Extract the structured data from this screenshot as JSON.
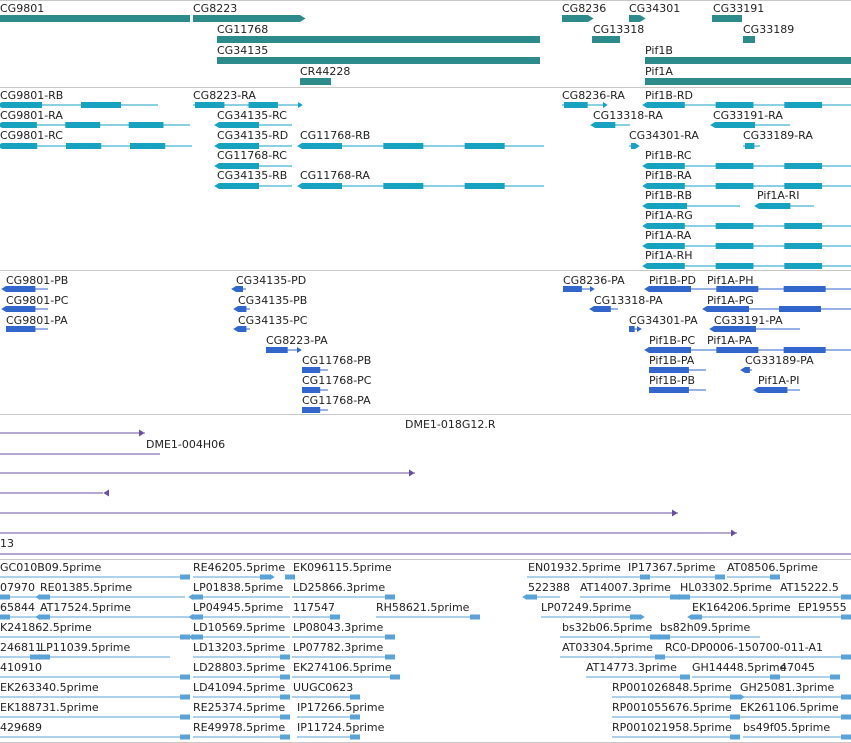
{
  "colors": {
    "gene": "#2e8b8b",
    "mrna": "#17a2c0",
    "protein": "#3366cc",
    "clone": "#6a4fa0",
    "est": "#5ba3d6",
    "separator": "#c8c8c8"
  },
  "tracks": [
    {
      "id": "genes",
      "color_key": "gene",
      "features": [
        {
          "label": "CG9801"
        },
        {
          "label": "CG8223"
        },
        {
          "label": "CG11768"
        },
        {
          "label": "CG34135"
        },
        {
          "label": "CR44228"
        },
        {
          "label": "CG8236"
        },
        {
          "label": "CG13318"
        },
        {
          "label": "CG34301"
        },
        {
          "label": "CG33191"
        },
        {
          "label": "CG33189"
        },
        {
          "label": "Pif1B"
        },
        {
          "label": "Pif1A"
        }
      ]
    },
    {
      "id": "transcripts",
      "color_key": "mrna",
      "features": [
        {
          "label": "CG9801-RB"
        },
        {
          "label": "CG9801-RA"
        },
        {
          "label": "CG9801-RC"
        },
        {
          "label": "CG8223-RA"
        },
        {
          "label": "CG34135-RC"
        },
        {
          "label": "CG34135-RD"
        },
        {
          "label": "CG11768-RB"
        },
        {
          "label": "CG11768-RC"
        },
        {
          "label": "CG34135-RB"
        },
        {
          "label": "CG11768-RA"
        },
        {
          "label": "CG8236-RA"
        },
        {
          "label": "CG13318-RA"
        },
        {
          "label": "CG34301-RA"
        },
        {
          "label": "Pif1B-RD"
        },
        {
          "label": "CG33191-RA"
        },
        {
          "label": "CG33189-RA"
        },
        {
          "label": "Pif1B-RC"
        },
        {
          "label": "Pif1B-RA"
        },
        {
          "label": "Pif1B-RB"
        },
        {
          "label": "Pif1A-RI"
        },
        {
          "label": "Pif1A-RG"
        },
        {
          "label": "Pif1A-RA"
        },
        {
          "label": "Pif1A-RH"
        }
      ]
    },
    {
      "id": "proteins",
      "color_key": "protein",
      "features": [
        {
          "label": "CG9801-PB"
        },
        {
          "label": "CG9801-PC"
        },
        {
          "label": "CG9801-PA"
        },
        {
          "label": "CG34135-PD"
        },
        {
          "label": "CG34135-PB"
        },
        {
          "label": "CG34135-PC"
        },
        {
          "label": "CG8223-PA"
        },
        {
          "label": "CG11768-PB"
        },
        {
          "label": "CG11768-PC"
        },
        {
          "label": "CG11768-PA"
        },
        {
          "label": "CG8236-PA"
        },
        {
          "label": "CG13318-PA"
        },
        {
          "label": "CG34301-PA"
        },
        {
          "label": "Pif1B-PD"
        },
        {
          "label": "Pif1A-PH"
        },
        {
          "label": "Pif1A-PG"
        },
        {
          "label": "CG33191-PA"
        },
        {
          "label": "Pif1B-PC"
        },
        {
          "label": "Pif1A-PA"
        },
        {
          "label": "Pif1B-PA"
        },
        {
          "label": "CG33189-PA"
        },
        {
          "label": "Pif1B-PB"
        },
        {
          "label": "Pif1A-PI"
        }
      ]
    },
    {
      "id": "clones",
      "color_key": "clone",
      "features": [
        {
          "label": "DME1-018G12.R"
        },
        {
          "label": "DME1-004H06"
        },
        {
          "label": "13"
        }
      ]
    },
    {
      "id": "ests",
      "color_key": "est",
      "features": [
        {
          "label": "GC010B09.5prime"
        },
        {
          "label": "RE46205.5prime"
        },
        {
          "label": "EK096115.5prime"
        },
        {
          "label": "EN01932.5prime"
        },
        {
          "label": "IP17367.5prime"
        },
        {
          "label": "AT08506.5prime"
        },
        {
          "label": "07970"
        },
        {
          "label": "RE01385.5prime"
        },
        {
          "label": "LP01838.5prime"
        },
        {
          "label": "LD25866.3prime"
        },
        {
          "label": "522388"
        },
        {
          "label": "AT14007.3prime"
        },
        {
          "label": "HL03302.5prime"
        },
        {
          "label": "AT15222.5"
        },
        {
          "label": "65844"
        },
        {
          "label": "AT17524.5prime"
        },
        {
          "label": "LP04945.5prime"
        },
        {
          "label": "117547"
        },
        {
          "label": "RH58621.5prime"
        },
        {
          "label": "LP07249.5prime"
        },
        {
          "label": "EK164206.5prime"
        },
        {
          "label": "EP19555"
        },
        {
          "label": "K241862.5prime"
        },
        {
          "label": "LD10569.5prime"
        },
        {
          "label": "LP08043.3prime"
        },
        {
          "label": "bs32b06.5prime"
        },
        {
          "label": "bs82h09.5prime"
        },
        {
          "label": "246811"
        },
        {
          "label": "LP11039.5prime"
        },
        {
          "label": "LD13203.5prime"
        },
        {
          "label": "LP07782.3prime"
        },
        {
          "label": "AT03304.5prime"
        },
        {
          "label": "RC0-DP0006-150700-011-A1"
        },
        {
          "label": "410910"
        },
        {
          "label": "LD28803.5prime"
        },
        {
          "label": "EK274106.5prime"
        },
        {
          "label": "AT14773.3prime"
        },
        {
          "label": "GH14448.5prime"
        },
        {
          "label": "47045"
        },
        {
          "label": "EK263340.5prime"
        },
        {
          "label": "LD41094.5prime"
        },
        {
          "label": "UUGC0623"
        },
        {
          "label": "RP001026848.5prime"
        },
        {
          "label": "GH25081.3prime"
        },
        {
          "label": "EK188731.5prime"
        },
        {
          "label": "RE25374.5prime"
        },
        {
          "label": "IP17266.5prime"
        },
        {
          "label": "RP001055676.5prime"
        },
        {
          "label": "EK261106.5prime"
        },
        {
          "label": "429689"
        },
        {
          "label": "RE49978.5prime"
        },
        {
          "label": "IP11724.5prime"
        },
        {
          "label": "RP001021958.5prime"
        },
        {
          "label": "bs49f05.5prime"
        }
      ]
    }
  ]
}
